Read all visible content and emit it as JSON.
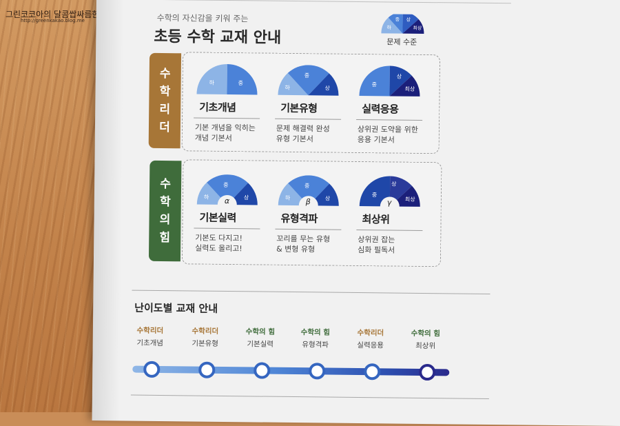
{
  "watermark": {
    "text": "그린코코아의 달콤쌉싸름한 이야기",
    "url": "http://greenkakao.blog.me"
  },
  "header": {
    "subtitle": "수학의 자신감을 키워 주는",
    "title": "초등 수학 교재 안내",
    "legend_label": "문제 수준",
    "legend_levels": [
      "하",
      "중",
      "상",
      "최상"
    ]
  },
  "colors": {
    "brown": "#a77637",
    "green": "#3f6c3b",
    "level_low": "#8db4e6",
    "level_mid": "#4b82d8",
    "level_high": "#1f47a8",
    "level_top": "#1b1f7a"
  },
  "sections": [
    {
      "name": "수학리더",
      "name_chars": [
        "수",
        "학",
        "리",
        "더"
      ],
      "books": [
        {
          "name": "기초개념",
          "desc1": "기본 개념을 익히는",
          "desc2": "개념 기본서",
          "levels": [
            "하",
            "중"
          ]
        },
        {
          "name": "기본유형",
          "desc1": "문제 해결력 완성",
          "desc2": "유형 기본서",
          "levels": [
            "하",
            "중",
            "상"
          ]
        },
        {
          "name": "실력응용",
          "desc1": "상위권 도약을 위한",
          "desc2": "응용 기본서",
          "levels": [
            "중",
            "상",
            "최상"
          ]
        }
      ]
    },
    {
      "name": "수학의 힘",
      "name_chars": [
        "수",
        "학",
        "의",
        "힘"
      ],
      "books": [
        {
          "name": "기본실력",
          "symbol": "α",
          "desc1": "기본도 다지고!",
          "desc2": "실력도 올리고!",
          "levels": [
            "하",
            "중",
            "상"
          ]
        },
        {
          "name": "유형격파",
          "symbol": "β",
          "desc1": "꼬리를 무는 유형",
          "desc2": "& 변형 유형",
          "levels": [
            "하",
            "중",
            "상"
          ]
        },
        {
          "name": "최상위",
          "symbol": "γ",
          "desc1": "상위권 잡는",
          "desc2": "심화 필독서",
          "levels": [
            "중",
            "상",
            "최상"
          ]
        }
      ]
    }
  ],
  "difficulty": {
    "title": "난이도별 교재 안내",
    "items": [
      {
        "series": "수학리더",
        "book": "기초개념",
        "color": "brown"
      },
      {
        "series": "수학리더",
        "book": "기본유형",
        "color": "brown"
      },
      {
        "series": "수학의 힘",
        "book": "기본실력",
        "color": "green"
      },
      {
        "series": "수학의 힘",
        "book": "유형격파",
        "color": "green"
      },
      {
        "series": "수학리더",
        "book": "실력응용",
        "color": "brown"
      },
      {
        "series": "수학의 힘",
        "book": "최상위",
        "color": "green"
      }
    ]
  }
}
